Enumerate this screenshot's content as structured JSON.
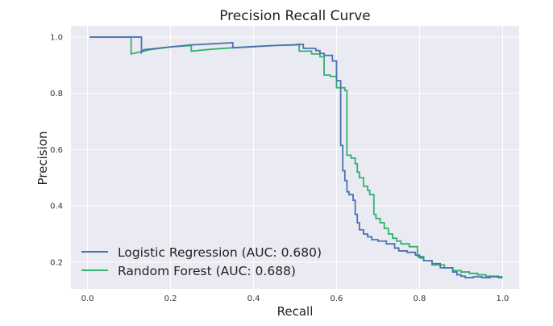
{
  "chart_data": {
    "type": "line",
    "title": "Precision Recall Curve",
    "xlabel": "Recall",
    "ylabel": "Precision",
    "xlim": [
      -0.04,
      1.04
    ],
    "ylim": [
      0.105,
      1.04
    ],
    "xticks": [
      0.0,
      0.2,
      0.4,
      0.6,
      0.8,
      1.0
    ],
    "xtick_labels": [
      "0.0",
      "0.2",
      "0.4",
      "0.6",
      "0.8",
      "1.0"
    ],
    "yticks": [
      0.2,
      0.4,
      0.6,
      0.8,
      1.0
    ],
    "ytick_labels": [
      "0.2",
      "0.4",
      "0.6",
      "0.8",
      "1.0"
    ],
    "grid": true,
    "legend_position": "bottom-left",
    "background": "#eaeaf2",
    "series": [
      {
        "name": "Logistic Regression (AUC: 0.680)",
        "color": "#4c72b0",
        "x": [
          0.005,
          0.13,
          0.13,
          0.135,
          0.2,
          0.25,
          0.3,
          0.35,
          0.35,
          0.4,
          0.45,
          0.5,
          0.52,
          0.52,
          0.55,
          0.55,
          0.56,
          0.56,
          0.57,
          0.57,
          0.59,
          0.59,
          0.6,
          0.6,
          0.61,
          0.61,
          0.615,
          0.615,
          0.62,
          0.62,
          0.625,
          0.625,
          0.63,
          0.63,
          0.64,
          0.64,
          0.645,
          0.645,
          0.65,
          0.65,
          0.655,
          0.655,
          0.665,
          0.665,
          0.675,
          0.675,
          0.685,
          0.685,
          0.7,
          0.7,
          0.72,
          0.72,
          0.74,
          0.74,
          0.75,
          0.75,
          0.77,
          0.77,
          0.79,
          0.79,
          0.8,
          0.8,
          0.81,
          0.81,
          0.83,
          0.83,
          0.85,
          0.85,
          0.88,
          0.88,
          0.89,
          0.89,
          0.9,
          0.9,
          0.91,
          0.91,
          0.93,
          0.93,
          0.95,
          0.95,
          0.97,
          0.97,
          0.99,
          0.99,
          1.0
        ],
        "y": [
          1.0,
          1.0,
          0.945,
          0.955,
          0.965,
          0.972,
          0.976,
          0.98,
          0.962,
          0.966,
          0.97,
          0.972,
          0.974,
          0.96,
          0.96,
          0.952,
          0.952,
          0.942,
          0.942,
          0.935,
          0.935,
          0.915,
          0.915,
          0.845,
          0.845,
          0.615,
          0.615,
          0.525,
          0.525,
          0.49,
          0.49,
          0.45,
          0.45,
          0.44,
          0.44,
          0.42,
          0.42,
          0.37,
          0.37,
          0.34,
          0.34,
          0.315,
          0.315,
          0.3,
          0.3,
          0.29,
          0.29,
          0.28,
          0.28,
          0.275,
          0.275,
          0.265,
          0.265,
          0.25,
          0.25,
          0.24,
          0.24,
          0.235,
          0.235,
          0.225,
          0.225,
          0.215,
          0.215,
          0.205,
          0.205,
          0.195,
          0.195,
          0.18,
          0.18,
          0.165,
          0.165,
          0.155,
          0.155,
          0.15,
          0.15,
          0.145,
          0.145,
          0.148,
          0.148,
          0.145,
          0.145,
          0.148,
          0.148,
          0.145,
          0.145
        ]
      },
      {
        "name": "Random Forest (AUC: 0.688)",
        "color": "#2fb36e",
        "x": [
          0.005,
          0.105,
          0.105,
          0.15,
          0.2,
          0.25,
          0.25,
          0.3,
          0.35,
          0.4,
          0.45,
          0.5,
          0.51,
          0.51,
          0.54,
          0.54,
          0.56,
          0.56,
          0.57,
          0.57,
          0.585,
          0.585,
          0.6,
          0.6,
          0.62,
          0.62,
          0.625,
          0.625,
          0.635,
          0.635,
          0.645,
          0.645,
          0.65,
          0.65,
          0.655,
          0.655,
          0.665,
          0.665,
          0.675,
          0.675,
          0.68,
          0.68,
          0.69,
          0.69,
          0.695,
          0.695,
          0.705,
          0.705,
          0.715,
          0.715,
          0.725,
          0.725,
          0.735,
          0.735,
          0.745,
          0.745,
          0.755,
          0.755,
          0.775,
          0.775,
          0.795,
          0.795,
          0.81,
          0.81,
          0.83,
          0.83,
          0.86,
          0.86,
          0.88,
          0.88,
          0.9,
          0.9,
          0.92,
          0.92,
          0.94,
          0.94,
          0.96,
          0.96,
          0.99,
          0.99,
          1.0
        ],
        "y": [
          1.0,
          1.0,
          0.94,
          0.955,
          0.965,
          0.97,
          0.95,
          0.957,
          0.962,
          0.966,
          0.97,
          0.973,
          0.975,
          0.95,
          0.95,
          0.94,
          0.94,
          0.93,
          0.93,
          0.865,
          0.865,
          0.86,
          0.86,
          0.82,
          0.82,
          0.81,
          0.81,
          0.58,
          0.58,
          0.57,
          0.57,
          0.55,
          0.55,
          0.52,
          0.52,
          0.5,
          0.5,
          0.47,
          0.47,
          0.455,
          0.455,
          0.44,
          0.44,
          0.37,
          0.37,
          0.355,
          0.355,
          0.34,
          0.34,
          0.32,
          0.32,
          0.3,
          0.3,
          0.285,
          0.285,
          0.275,
          0.275,
          0.265,
          0.265,
          0.255,
          0.255,
          0.22,
          0.22,
          0.205,
          0.205,
          0.19,
          0.19,
          0.18,
          0.18,
          0.17,
          0.17,
          0.165,
          0.165,
          0.16,
          0.16,
          0.155,
          0.155,
          0.15,
          0.15,
          0.148,
          0.148
        ]
      }
    ]
  }
}
